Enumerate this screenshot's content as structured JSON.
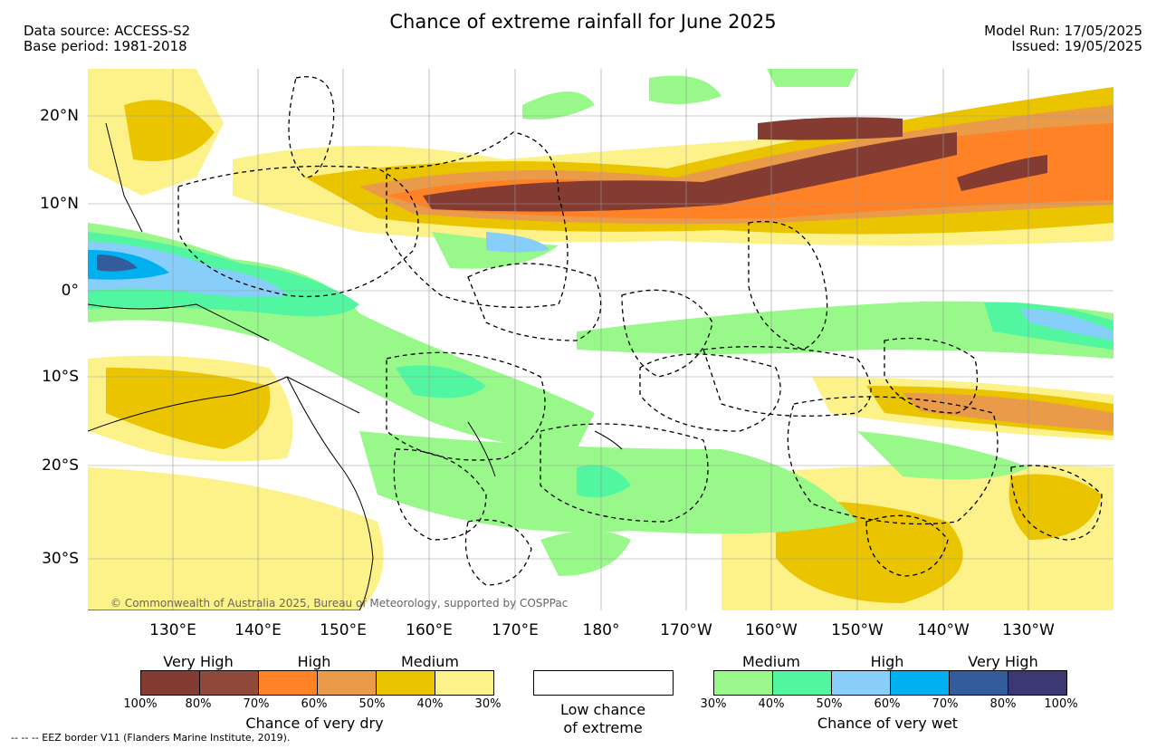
{
  "title": "Chance of extreme rainfall for June 2025",
  "meta": {
    "data_source": "Data source: ACCESS-S2",
    "base_period": "Base period: 1981-2018",
    "model_run": "Model Run: 17/05/2025",
    "issued": "Issued: 19/05/2025"
  },
  "map": {
    "lat_labels": [
      "20°N",
      "10°N",
      "0°",
      "10°S",
      "20°S",
      "30°S"
    ],
    "lon_labels": [
      "130°E",
      "140°E",
      "150°E",
      "160°E",
      "170°E",
      "180°",
      "170°W",
      "160°W",
      "150°W",
      "140°W",
      "130°W"
    ],
    "copyright": "© Commonwealth of Australia 2025, Bureau of Meteorology, supported by COSPPac"
  },
  "legend_dry": {
    "headers": [
      "Very High",
      "High",
      "Medium"
    ],
    "colors": [
      "#843b32",
      "#8f4a3a",
      "#ff8226",
      "#e99b4a",
      "#ebc400",
      "#fdf28a"
    ],
    "ticks": [
      "100%",
      "80%",
      "70%",
      "60%",
      "50%",
      "40%",
      "30%"
    ],
    "caption": "Chance of very dry"
  },
  "legend_low": {
    "line1": "Low chance",
    "line2": "of extreme"
  },
  "legend_wet": {
    "headers": [
      "Medium",
      "High",
      "Very High"
    ],
    "colors": [
      "#98f98a",
      "#52f5a0",
      "#87cefa",
      "#00b0ef",
      "#325c9a",
      "#3c3874"
    ],
    "ticks": [
      "30%",
      "40%",
      "50%",
      "60%",
      "70%",
      "80%",
      "100%"
    ],
    "caption": "Chance of very wet"
  },
  "footnote": "--  --  -- EEZ border V11 (Flanders Marine Institute, 2019)."
}
